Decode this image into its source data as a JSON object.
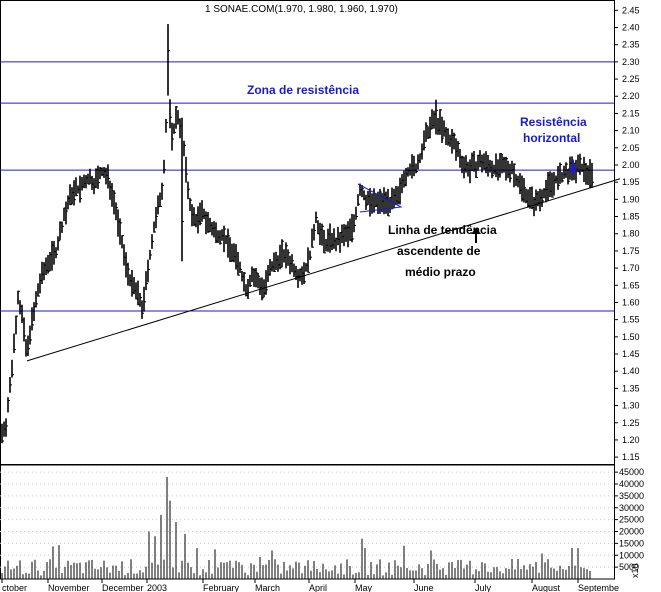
{
  "chart_data": {
    "type": "ohlc",
    "title": "1 SONAE.COM(1.970, 1.980, 1.960, 1.970)",
    "price_axis": {
      "ylim": [
        1.13,
        2.48
      ],
      "ticks": [
        "2.45",
        "2.40",
        "2.35",
        "2.30",
        "2.25",
        "2.20",
        "2.15",
        "2.10",
        "2.05",
        "2.00",
        "1.95",
        "1.90",
        "1.85",
        "1.80",
        "1.75",
        "1.70",
        "1.65",
        "1.60",
        "1.55",
        "1.50",
        "1.45",
        "1.40",
        "1.35",
        "1.30",
        "1.25",
        "1.20",
        "1.15"
      ]
    },
    "volume_axis": {
      "ylim": [
        0,
        48000
      ],
      "ticks": [
        "45000",
        "40000",
        "35000",
        "30000",
        "25000",
        "20000",
        "15000",
        "10000",
        "5000"
      ],
      "unit_label": "x10"
    },
    "x_axis": {
      "labels": [
        "ctober",
        "November",
        "December",
        "2003",
        "February",
        "March",
        "April",
        "May",
        "June",
        "July",
        "August",
        "Septembe"
      ]
    },
    "horizontal_levels": [
      2.3,
      2.18,
      1.985,
      1.575
    ],
    "trendline": {
      "x_start": 27,
      "y_start": 1.43,
      "x_end": 620,
      "y_end": 1.96
    },
    "annotations": {
      "resistance_zone": "Zona de resistência",
      "horizontal_resistance": [
        "Resistência",
        "horizontal"
      ],
      "trendline": [
        "Linha de tendência",
        "ascendente de",
        "médio prazo"
      ]
    },
    "price_waypoints": [
      [
        2,
        1.22
      ],
      [
        6,
        1.25
      ],
      [
        10,
        1.35
      ],
      [
        14,
        1.48
      ],
      [
        18,
        1.62
      ],
      [
        22,
        1.56
      ],
      [
        27,
        1.44
      ],
      [
        30,
        1.52
      ],
      [
        34,
        1.57
      ],
      [
        40,
        1.66
      ],
      [
        48,
        1.72
      ],
      [
        56,
        1.75
      ],
      [
        64,
        1.85
      ],
      [
        72,
        1.92
      ],
      [
        80,
        1.93
      ],
      [
        88,
        1.96
      ],
      [
        95,
        1.95
      ],
      [
        102,
        1.98
      ],
      [
        108,
        1.96
      ],
      [
        114,
        1.9
      ],
      [
        120,
        1.8
      ],
      [
        126,
        1.71
      ],
      [
        132,
        1.65
      ],
      [
        138,
        1.62
      ],
      [
        143,
        1.58
      ],
      [
        148,
        1.7
      ],
      [
        153,
        1.8
      ],
      [
        158,
        1.87
      ],
      [
        163,
        1.95
      ],
      [
        168,
        2.22
      ],
      [
        172,
        2.08
      ],
      [
        177,
        2.15
      ],
      [
        182,
        2.1
      ],
      [
        187,
        1.95
      ],
      [
        192,
        1.85
      ],
      [
        197,
        1.84
      ],
      [
        203,
        1.86
      ],
      [
        210,
        1.82
      ],
      [
        216,
        1.8
      ],
      [
        222,
        1.8
      ],
      [
        228,
        1.77
      ],
      [
        234,
        1.74
      ],
      [
        240,
        1.7
      ],
      [
        246,
        1.64
      ],
      [
        252,
        1.68
      ],
      [
        258,
        1.66
      ],
      [
        264,
        1.64
      ],
      [
        270,
        1.69
      ],
      [
        276,
        1.72
      ],
      [
        282,
        1.74
      ],
      [
        288,
        1.73
      ],
      [
        294,
        1.7
      ],
      [
        300,
        1.68
      ],
      [
        306,
        1.7
      ],
      [
        311,
        1.75
      ],
      [
        316,
        1.85
      ],
      [
        321,
        1.79
      ],
      [
        326,
        1.77
      ],
      [
        331,
        1.79
      ],
      [
        336,
        1.77
      ],
      [
        342,
        1.79
      ],
      [
        348,
        1.8
      ],
      [
        354,
        1.83
      ],
      [
        360,
        1.93
      ],
      [
        366,
        1.9
      ],
      [
        372,
        1.89
      ],
      [
        378,
        1.89
      ],
      [
        385,
        1.9
      ],
      [
        392,
        1.89
      ],
      [
        398,
        1.9
      ],
      [
        404,
        1.97
      ],
      [
        410,
        1.99
      ],
      [
        416,
        1.99
      ],
      [
        422,
        2.04
      ],
      [
        428,
        2.1
      ],
      [
        434,
        2.13
      ],
      [
        440,
        2.12
      ],
      [
        446,
        2.08
      ],
      [
        452,
        2.07
      ],
      [
        458,
        2.04
      ],
      [
        464,
        2.0
      ],
      [
        470,
        1.99
      ],
      [
        476,
        2.0
      ],
      [
        482,
        2.01
      ],
      [
        488,
        2.0
      ],
      [
        494,
        1.99
      ],
      [
        500,
        1.99
      ],
      [
        506,
        1.99
      ],
      [
        512,
        1.99
      ],
      [
        518,
        1.95
      ],
      [
        524,
        1.93
      ],
      [
        530,
        1.9
      ],
      [
        536,
        1.89
      ],
      [
        541,
        1.91
      ],
      [
        546,
        1.93
      ],
      [
        552,
        1.95
      ],
      [
        558,
        1.96
      ],
      [
        564,
        1.97
      ],
      [
        570,
        1.98
      ],
      [
        576,
        1.99
      ],
      [
        582,
        1.99
      ],
      [
        588,
        1.98
      ],
      [
        592,
        1.97
      ]
    ]
  }
}
